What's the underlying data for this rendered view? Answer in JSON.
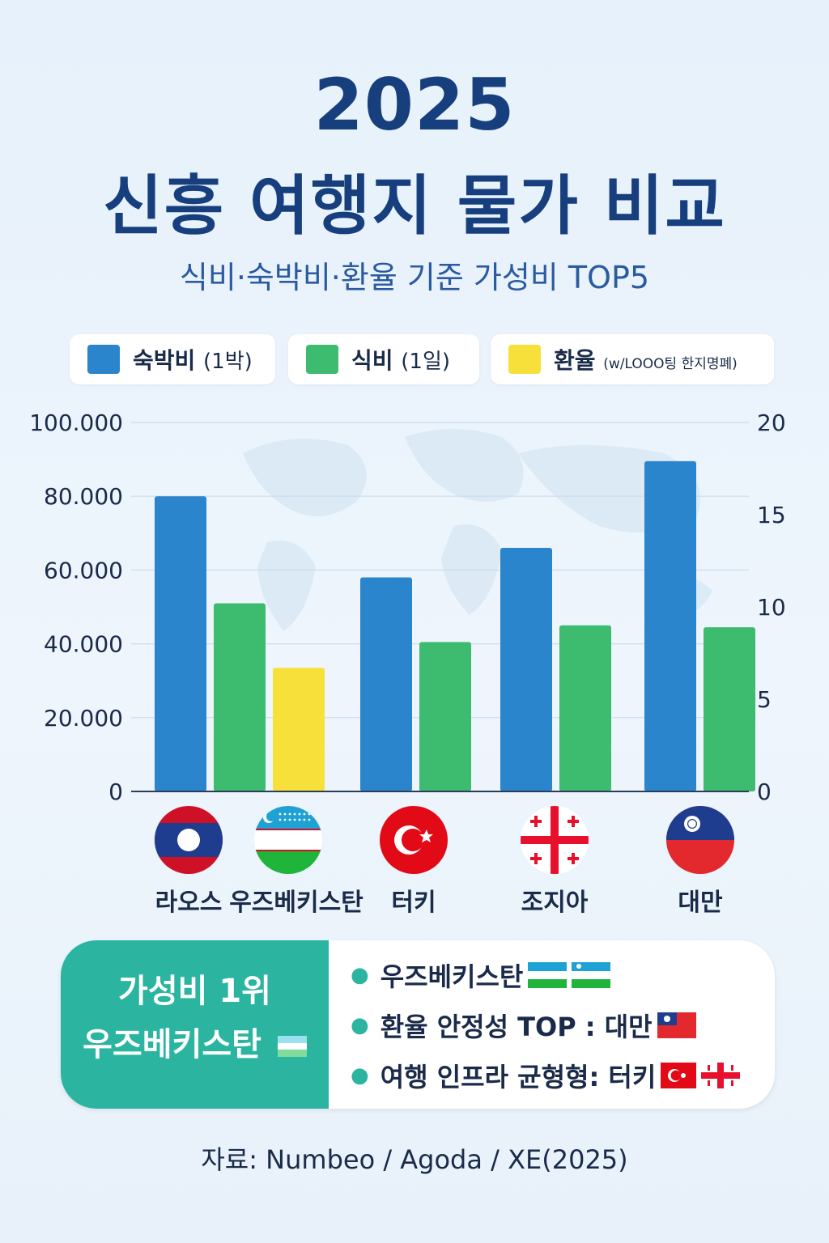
{
  "header": {
    "year": "2025",
    "title": "신흥 여행지 물가 비교",
    "subtitle": "식비·숙박비·환율 기준 가성비 TOP5"
  },
  "legend": {
    "lodging": {
      "label": "숙박비",
      "note": "(1박)",
      "color": "#2a85cc"
    },
    "food": {
      "label": "식비",
      "note": "(1일)",
      "color": "#3dbb6e"
    },
    "exchange": {
      "label": "환율",
      "note": "(w/LOOO팅 한지명폐)",
      "color": "#f7e03a"
    }
  },
  "chart_data": {
    "type": "bar",
    "categories": [
      "라오스",
      "우즈베키스탄",
      "터키",
      "조지아",
      "대만"
    ],
    "series": [
      {
        "name": "숙박비 (1박)",
        "color": "#2a85cc",
        "axis": "left",
        "values": [
          80000,
          null,
          58000,
          66000,
          89500
        ]
      },
      {
        "name": "식비 (1일)",
        "color": "#3dbb6e",
        "axis": "left",
        "values": [
          51000,
          null,
          40500,
          45000,
          44500
        ]
      },
      {
        "name": "환율",
        "color": "#f7e03a",
        "axis": "left",
        "values": [
          null,
          33500,
          null,
          null,
          null
        ]
      }
    ],
    "y_left": {
      "min": 0,
      "max": 100000,
      "ticks": [
        "0",
        "20.000",
        "40.000",
        "60.000",
        "80.000",
        "100.000"
      ]
    },
    "y_right": {
      "min": 0,
      "max": 20,
      "ticks": [
        "0",
        "5",
        "10",
        "15",
        "20"
      ]
    },
    "grid": true
  },
  "countries": [
    {
      "name": "라오스",
      "flag": "laos-flag"
    },
    {
      "name": "우즈베키스탄",
      "flag": "uzbekistan-flag"
    },
    {
      "name": "터키",
      "flag": "turkey-flag"
    },
    {
      "name": "조지아",
      "flag": "georgia-flag"
    },
    {
      "name": "대만",
      "flag": "taiwan-flag"
    }
  ],
  "summary": {
    "rank_label": "가성비 1위",
    "winner": "우즈베키스탄",
    "items": [
      {
        "text": "우즈베키스탄"
      },
      {
        "text": "환율 안정성 TOP : 대만"
      },
      {
        "text": "여행 인프라 균형형: 터키"
      }
    ]
  },
  "source": "자료: Numbeo / Agoda / XE(2025)"
}
